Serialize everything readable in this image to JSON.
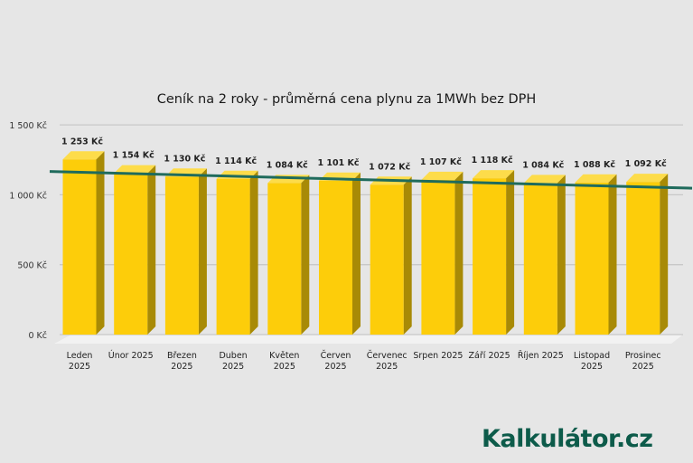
{
  "chart_data": {
    "type": "bar",
    "title": "Ceník na 2 roky - průměrná cena plynu za 1MWh bez DPH",
    "xlabel": "",
    "ylabel": "",
    "ylim": [
      0,
      1500
    ],
    "yticks": [
      "0 Kč",
      "500 Kč",
      "1 000 Kč",
      "1 500 Kč"
    ],
    "ytick_values": [
      0,
      500,
      1000,
      1500
    ],
    "grid": true,
    "legend": null,
    "categories": [
      [
        "Leden",
        "2025"
      ],
      [
        "Únor 2025"
      ],
      [
        "Březen",
        "2025"
      ],
      [
        "Duben",
        "2025"
      ],
      [
        "Květen",
        "2025"
      ],
      [
        "Červen",
        "2025"
      ],
      [
        "Červenec",
        "2025"
      ],
      [
        "Srpen 2025"
      ],
      [
        "Září 2025"
      ],
      [
        "Říjen 2025"
      ],
      [
        "Listopad",
        "2025"
      ],
      [
        "Prosinec",
        "2025"
      ]
    ],
    "values": [
      1253,
      1154,
      1130,
      1114,
      1084,
      1101,
      1072,
      1107,
      1118,
      1084,
      1088,
      1092
    ],
    "data_labels": [
      "1 253 Kč",
      "1 154 Kč",
      "1 130 Kč",
      "1 114 Kč",
      "1 084 Kč",
      "1 101 Kč",
      "1 072 Kč",
      "1 107 Kč",
      "1 118 Kč",
      "1 084 Kč",
      "1 088 Kč",
      "1 092 Kč"
    ],
    "trendline": {
      "type": "linear",
      "color": "#1f6b5c",
      "start_value": 1180,
      "end_value": 1060
    },
    "colors": {
      "bar_front": "#fdcd0a",
      "bar_top": "#fddc4a",
      "bar_side": "#a88a06",
      "grid": "#c8c8c8",
      "floor": "#f2f2f2"
    }
  },
  "branding": {
    "logo_text": "Kalkulátor.cz",
    "logo_color": "#0d5b4a"
  }
}
